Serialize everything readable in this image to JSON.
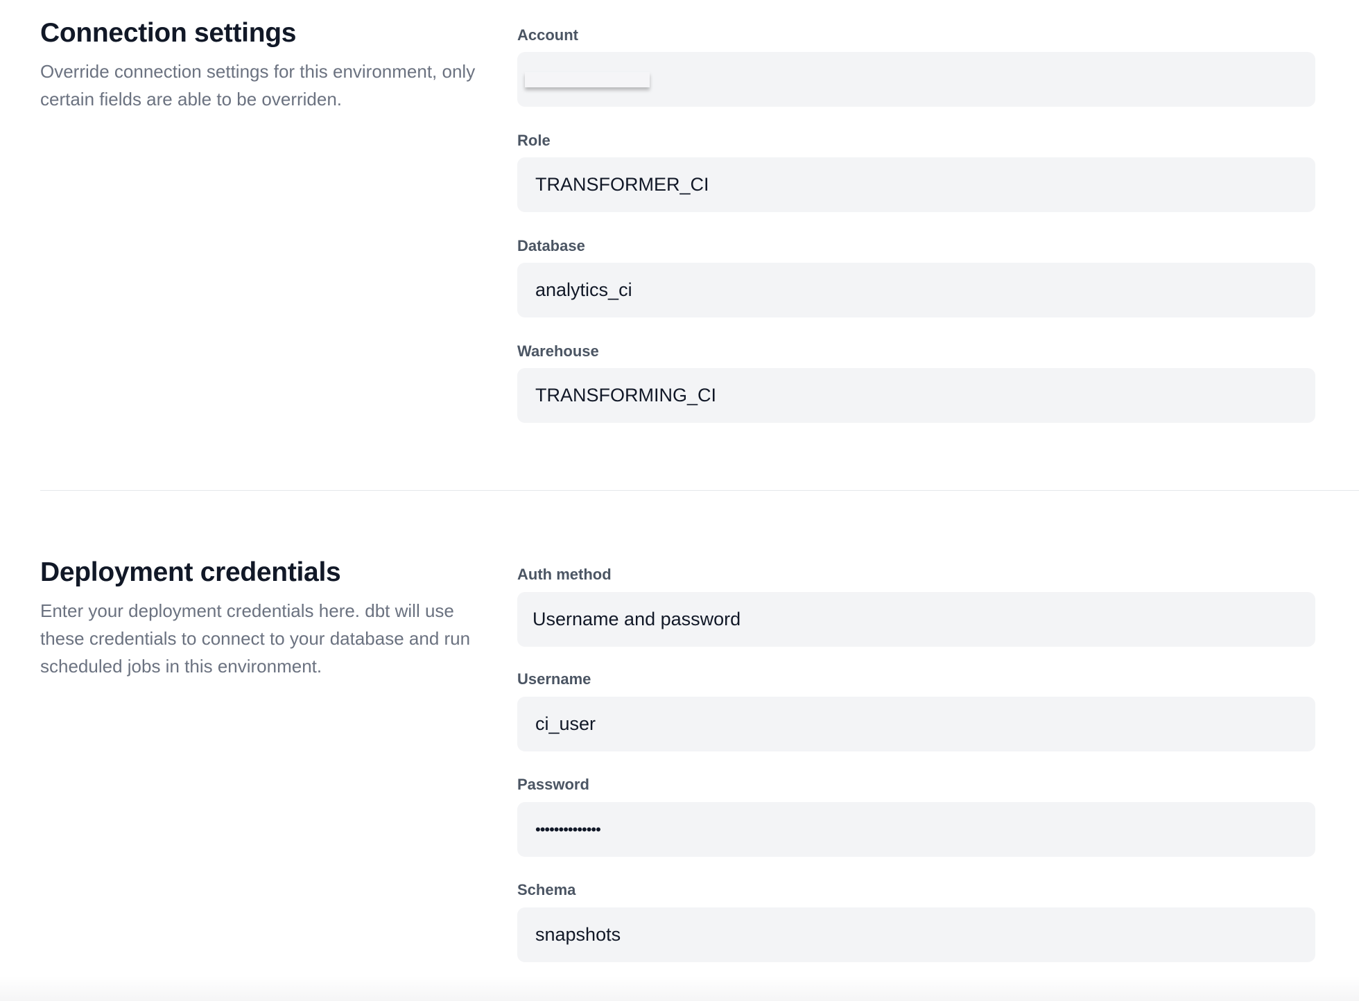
{
  "connection": {
    "title": "Connection settings",
    "description": "Override connection settings for this environment, only certain fields are able to be overriden.",
    "fields": [
      {
        "label": "Account",
        "value": ""
      },
      {
        "label": "Role",
        "value": "TRANSFORMER_CI"
      },
      {
        "label": "Database",
        "value": "analytics_ci"
      },
      {
        "label": "Warehouse",
        "value": "TRANSFORMING_CI"
      }
    ]
  },
  "credentials": {
    "title": "Deployment credentials",
    "description": "Enter your deployment credentials here. dbt will use these credentials to connect to your database and run scheduled jobs in this environment.",
    "fields": [
      {
        "label": "Auth method",
        "value": "Username and password"
      },
      {
        "label": "Username",
        "value": "ci_user"
      },
      {
        "label": "Password",
        "value": "••••••••••••••"
      },
      {
        "label": "Schema",
        "value": "snapshots"
      }
    ]
  },
  "colors": {
    "field_bg": "#f3f4f6",
    "label": "#4b5563",
    "description": "#6b7280"
  }
}
